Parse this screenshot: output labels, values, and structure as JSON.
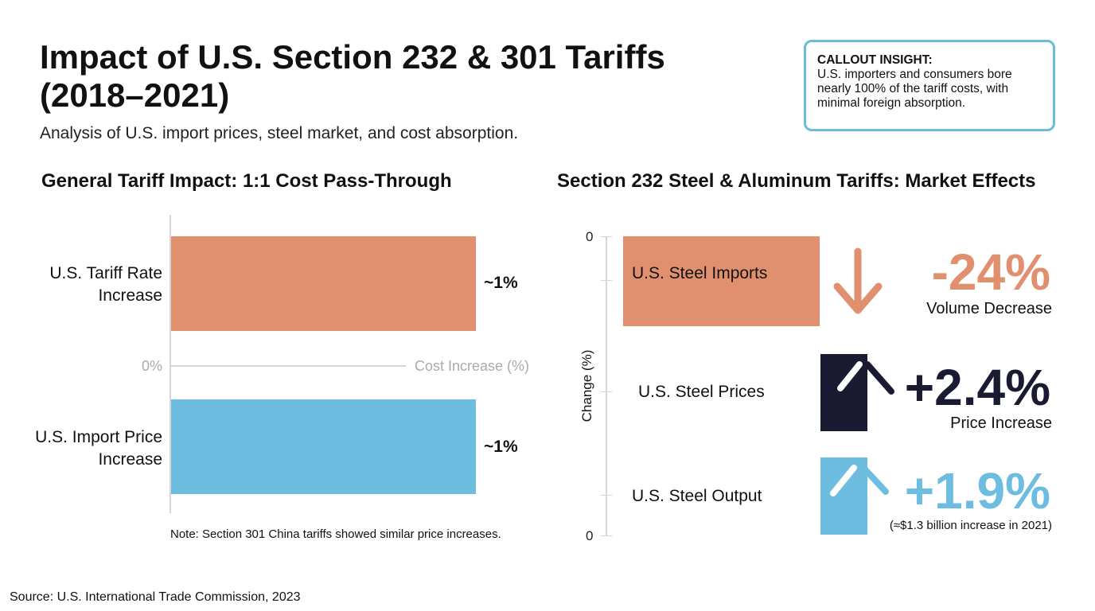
{
  "header": {
    "title": "Impact of U.S. Section 232 & 301 Tariffs (2018–2021)",
    "subtitle": "Analysis of U.S. import prices, steel market, and cost absorption."
  },
  "callout": {
    "heading": "CALLOUT INSIGHT:",
    "text": "U.S. importers and consumers bore nearly 100% of the tariff costs, with minimal foreign absorption."
  },
  "colors": {
    "orange": "#E0906E",
    "blue": "#6DBDE0",
    "navy": "#1B1A33",
    "callout_border": "#6BBCD6"
  },
  "chart_data": [
    {
      "type": "bar",
      "title": "General Tariff Impact: 1:1 Cost Pass-Through",
      "xlabel": "Cost Increase (%)",
      "zero_label": "0%",
      "categories": [
        "U.S. Tariff Rate Increase",
        "U.S. Import Price Increase"
      ],
      "values": [
        1,
        1
      ],
      "data_labels": [
        "~1%",
        "~1%"
      ],
      "note": "Note: Section 301 China tariffs showed similar price increases."
    },
    {
      "type": "bar",
      "title": "Section 232 Steel & Aluminum Tariffs: Market Effects",
      "ylabel": "Change (%)",
      "tick_labels": [
        "0",
        "0"
      ],
      "categories": [
        "U.S. Steel Imports",
        "U.S. Steel Prices",
        "U.S. Steel Output"
      ],
      "values": [
        -24,
        2.4,
        1.9
      ],
      "data_labels": [
        "-24%",
        "+2.4%",
        "+1.9%"
      ],
      "sublabels": [
        "Volume Decrease",
        "Price Increase",
        "(≈$1.3 billion increase in 2021)"
      ],
      "icons": [
        "arrow-down-icon",
        "arrow-up-icon",
        "arrow-up-icon"
      ]
    }
  ],
  "footer": {
    "source": "Source: U.S. International Trade Commission, 2023"
  }
}
